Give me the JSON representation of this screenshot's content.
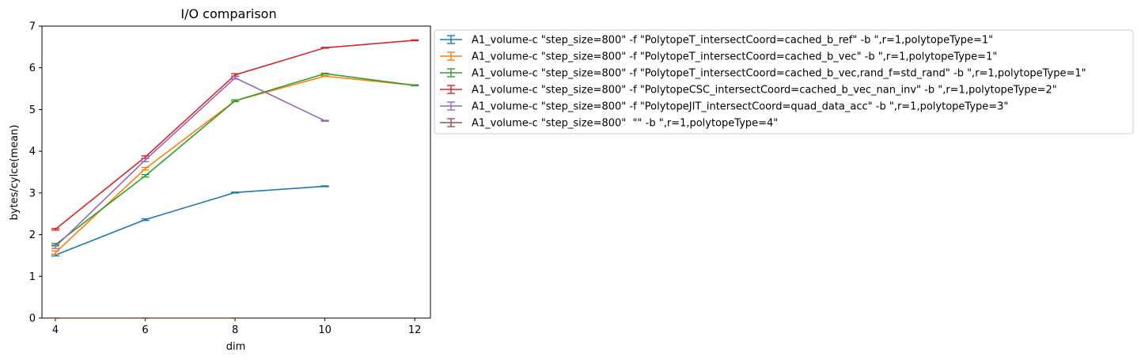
{
  "chart_data": {
    "type": "line",
    "title": "I/O comparison",
    "xlabel": "dim",
    "ylabel": "bytes/cylce(mean)",
    "xlim": [
      3.7,
      12.35
    ],
    "ylim": [
      0,
      7
    ],
    "xticks": [
      4,
      6,
      8,
      10,
      12
    ],
    "yticks": [
      0,
      1,
      2,
      3,
      4,
      5,
      6,
      7
    ],
    "grid": false,
    "legend_position": "outside-right-top",
    "error_bars": true,
    "series": [
      {
        "name": "A1_volume-c \"step_size=800\" -f \"PolytopeT_intersectCoord=cached_b_ref\" -b \",r=1,polytopeType=1\"",
        "color": "#1f77b4",
        "x": [
          4,
          6,
          8,
          10
        ],
        "y": [
          1.51,
          2.36,
          3.01,
          3.16
        ],
        "err": [
          0.02,
          0.02,
          0.01,
          0.01
        ]
      },
      {
        "name": "A1_volume-c \"step_size=800\" -f \"PolytopeT_intersectCoord=cached_b_vec\" -b \",r=1,polytopeType=1\"",
        "color": "#ff7f0e",
        "x": [
          4,
          6,
          8,
          10,
          12
        ],
        "y": [
          1.57,
          3.58,
          5.21,
          5.8,
          5.58
        ],
        "err": [
          0.04,
          0.03,
          0.02,
          0.01,
          0.01
        ]
      },
      {
        "name": "A1_volume-c \"step_size=800\" -f \"PolytopeT_intersectCoord=cached_b_vec,rand_f=std_rand\" -b \",r=1,polytopeType=1\"",
        "color": "#2ca02c",
        "x": [
          4,
          6,
          8,
          10,
          12
        ],
        "y": [
          1.76,
          3.41,
          5.21,
          5.86,
          5.58
        ],
        "err": [
          0.03,
          0.03,
          0.02,
          0.01,
          0.01
        ]
      },
      {
        "name": "A1_volume-c \"step_size=800\" -f \"PolytopeCSC_intersectCoord=cached_b_vec_nan_inv\" -b \",r=1,polytopeType=2\"",
        "color": "#d62728",
        "x": [
          4,
          6,
          8,
          10,
          12
        ],
        "y": [
          2.13,
          3.86,
          5.83,
          6.48,
          6.66
        ],
        "err": [
          0.02,
          0.03,
          0.03,
          0.01,
          0.01
        ]
      },
      {
        "name": "A1_volume-c \"step_size=800\" -f \"PolytopeJIT_intersectCoord=quad_data_acc\" -b \",r=1,polytopeType=3\"",
        "color": "#9467bd",
        "x": [
          4,
          6,
          8,
          10
        ],
        "y": [
          1.71,
          3.79,
          5.76,
          4.73
        ],
        "err": [
          0.04,
          0.04,
          0.03,
          0.01
        ]
      },
      {
        "name": "A1_volume-c \"step_size=800\"  \"\" -b \",r=1,polytopeType=4\"",
        "color": "#8c564b",
        "x": [
          4,
          6,
          8
        ],
        "y": [
          0,
          0,
          0
        ],
        "err": [
          0,
          0,
          0
        ]
      }
    ]
  }
}
